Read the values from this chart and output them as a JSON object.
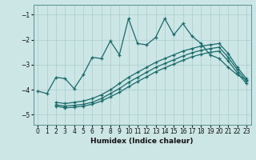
{
  "xlabel": "Humidex (Indice chaleur)",
  "background_color": "#cce5e5",
  "grid_color": "#aacccc",
  "line_color": "#1a6b6b",
  "xlim": [
    -0.5,
    23.5
  ],
  "ylim": [
    -5.4,
    -0.6
  ],
  "x_ticks": [
    0,
    1,
    2,
    3,
    4,
    5,
    6,
    7,
    8,
    9,
    10,
    11,
    12,
    13,
    14,
    15,
    16,
    17,
    18,
    19,
    20,
    21,
    22,
    23
  ],
  "y_ticks": [
    -5,
    -4,
    -3,
    -2,
    -1
  ],
  "line1_x": [
    0,
    1,
    2,
    3,
    4,
    5,
    6,
    7,
    8,
    9,
    10,
    11,
    12,
    13,
    14,
    15,
    16,
    17,
    18,
    19,
    20,
    21,
    22,
    23
  ],
  "line1_y": [
    -4.05,
    -4.15,
    -3.5,
    -3.55,
    -3.95,
    -3.4,
    -2.7,
    -2.75,
    -2.05,
    -2.6,
    -1.15,
    -2.15,
    -2.2,
    -1.9,
    -1.15,
    -1.8,
    -1.35,
    -1.85,
    -2.15,
    -2.6,
    -2.75,
    -3.1,
    -3.4,
    -3.6
  ],
  "line2_x": [
    2,
    3,
    4,
    5,
    6,
    7,
    8,
    9,
    10,
    11,
    12,
    13,
    14,
    15,
    16,
    17,
    18,
    19,
    20,
    21,
    22,
    23
  ],
  "line2_y": [
    -4.5,
    -4.55,
    -4.5,
    -4.45,
    -4.35,
    -4.2,
    -4.0,
    -3.75,
    -3.5,
    -3.3,
    -3.1,
    -2.9,
    -2.75,
    -2.6,
    -2.45,
    -2.35,
    -2.25,
    -2.2,
    -2.15,
    -2.55,
    -3.1,
    -3.55
  ],
  "line3_x": [
    2,
    3,
    4,
    5,
    6,
    7,
    8,
    9,
    10,
    11,
    12,
    13,
    14,
    15,
    16,
    17,
    18,
    19,
    20,
    21,
    22,
    23
  ],
  "line3_y": [
    -4.6,
    -4.65,
    -4.62,
    -4.58,
    -4.5,
    -4.35,
    -4.15,
    -3.95,
    -3.7,
    -3.5,
    -3.3,
    -3.1,
    -2.95,
    -2.8,
    -2.65,
    -2.52,
    -2.42,
    -2.35,
    -2.3,
    -2.7,
    -3.2,
    -3.65
  ],
  "line4_x": [
    2,
    3,
    4,
    5,
    6,
    7,
    8,
    9,
    10,
    11,
    12,
    13,
    14,
    15,
    16,
    17,
    18,
    19,
    20,
    21,
    22,
    23
  ],
  "line4_y": [
    -4.65,
    -4.72,
    -4.7,
    -4.65,
    -4.58,
    -4.45,
    -4.28,
    -4.1,
    -3.88,
    -3.67,
    -3.48,
    -3.28,
    -3.12,
    -2.97,
    -2.82,
    -2.68,
    -2.58,
    -2.5,
    -2.45,
    -2.85,
    -3.32,
    -3.75
  ]
}
